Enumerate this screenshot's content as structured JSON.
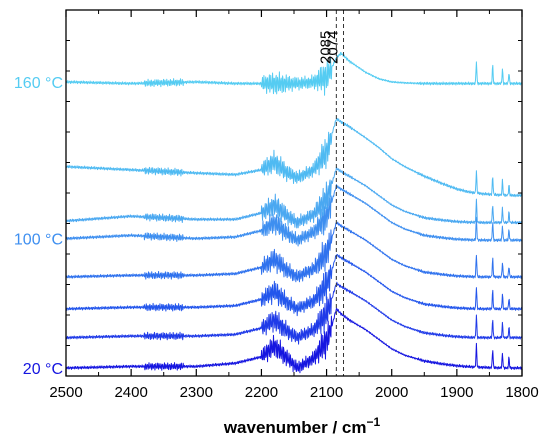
{
  "chart_data": {
    "type": "line",
    "title": "",
    "xlabel": "wavenumber / cm",
    "xlabel_sup": "−1",
    "ylabel": "",
    "xlim": [
      2500,
      1800
    ],
    "x_reversed": true,
    "ylim": [
      -0.25,
      11.2
    ],
    "yticks_shown": false,
    "grid": false,
    "legend": "none",
    "x_tick_labels": [
      "2500",
      "2400",
      "2300",
      "2200",
      "2100",
      "2000",
      "1900",
      "1800"
    ],
    "x_tick_values": [
      2500,
      2400,
      2300,
      2200,
      2100,
      2000,
      1900,
      1800
    ],
    "reference_lines": [
      {
        "x": 2085,
        "label": "2085",
        "style": "dashed"
      },
      {
        "x": 2074,
        "label": "2074",
        "style": "dashed"
      }
    ],
    "temperature_labels": [
      {
        "text": "160 °C",
        "series_index": 7,
        "color": "#55ccf2"
      },
      {
        "text": "100 °C",
        "series_index": 4,
        "color": "#3e8ff0"
      },
      {
        "text": "20 °C",
        "series_index": 0,
        "color": "#1515e0"
      }
    ],
    "series": [
      {
        "color": "#1515e0",
        "x": [
          2500,
          2400,
          2300,
          2240,
          2200,
          2180,
          2160,
          2145,
          2120,
          2100,
          2092,
          2085,
          2078,
          2065,
          2040,
          2020,
          2000,
          1980,
          1950,
          1920,
          1900,
          1880,
          1860,
          1840,
          1820,
          1800
        ],
        "y": [
          0.0,
          0.05,
          0.05,
          0.15,
          0.35,
          0.7,
          0.3,
          0.0,
          0.3,
          0.85,
          1.3,
          1.85,
          1.7,
          1.5,
          1.2,
          0.9,
          0.6,
          0.4,
          0.22,
          0.12,
          0.07,
          0.04,
          0.02,
          0.01,
          0.0,
          0.0
        ]
      },
      {
        "color": "#1f3ae8",
        "x": [
          2500,
          2400,
          2300,
          2240,
          2200,
          2180,
          2160,
          2145,
          2120,
          2100,
          2092,
          2085,
          2078,
          2065,
          2040,
          2020,
          2000,
          1980,
          1950,
          1920,
          1900,
          1880,
          1860,
          1840,
          1820,
          1800
        ],
        "y": [
          0.95,
          1.0,
          1.0,
          1.05,
          1.25,
          1.5,
          1.15,
          0.95,
          1.2,
          1.7,
          2.15,
          2.65,
          2.55,
          2.4,
          2.1,
          1.8,
          1.5,
          1.3,
          1.1,
          1.02,
          0.98,
          0.96,
          0.95,
          0.95,
          0.95,
          0.95
        ]
      },
      {
        "color": "#2356ec",
        "x": [
          2500,
          2400,
          2300,
          2240,
          2200,
          2180,
          2160,
          2145,
          2120,
          2100,
          2092,
          2085,
          2078,
          2065,
          2040,
          2020,
          2000,
          1980,
          1950,
          1920,
          1900,
          1880,
          1860,
          1840,
          1820,
          1800
        ],
        "y": [
          1.85,
          1.9,
          1.9,
          1.95,
          2.15,
          2.4,
          2.05,
          1.85,
          2.1,
          2.6,
          3.05,
          3.55,
          3.45,
          3.3,
          3.0,
          2.7,
          2.4,
          2.2,
          2.0,
          1.92,
          1.88,
          1.86,
          1.85,
          1.85,
          1.85,
          1.85
        ]
      },
      {
        "color": "#2f72ee",
        "x": [
          2500,
          2400,
          2300,
          2240,
          2200,
          2180,
          2160,
          2145,
          2120,
          2100,
          2092,
          2085,
          2078,
          2065,
          2040,
          2020,
          2000,
          1980,
          1950,
          1920,
          1900,
          1880,
          1860,
          1840,
          1820,
          1800
        ],
        "y": [
          2.85,
          2.9,
          2.9,
          2.95,
          3.15,
          3.4,
          3.05,
          2.85,
          3.1,
          3.6,
          4.05,
          4.55,
          4.45,
          4.3,
          4.0,
          3.7,
          3.4,
          3.2,
          3.0,
          2.92,
          2.88,
          2.86,
          2.85,
          2.85,
          2.85,
          2.85
        ]
      },
      {
        "color": "#3e8ff0",
        "x": [
          2500,
          2400,
          2300,
          2240,
          2200,
          2180,
          2160,
          2145,
          2120,
          2100,
          2092,
          2085,
          2078,
          2065,
          2040,
          2020,
          2000,
          1980,
          1950,
          1920,
          1900,
          1880,
          1860,
          1840,
          1820,
          1800
        ],
        "y": [
          4.05,
          4.15,
          4.05,
          4.1,
          4.3,
          4.55,
          4.2,
          4.0,
          4.25,
          4.75,
          5.2,
          5.7,
          5.6,
          5.45,
          5.15,
          4.85,
          4.55,
          4.35,
          4.15,
          4.07,
          4.03,
          4.01,
          4.0,
          4.0,
          4.0,
          4.0
        ]
      },
      {
        "color": "#4aa8f1",
        "x": [
          2500,
          2400,
          2300,
          2240,
          2200,
          2180,
          2160,
          2145,
          2120,
          2100,
          2092,
          2085,
          2078,
          2065,
          2040,
          2020,
          2000,
          1980,
          1950,
          1920,
          1900,
          1880,
          1860,
          1840,
          1820,
          1800
        ],
        "y": [
          4.6,
          4.75,
          4.65,
          4.65,
          4.85,
          5.1,
          4.75,
          4.55,
          4.8,
          5.3,
          5.75,
          6.25,
          6.15,
          6.0,
          5.7,
          5.4,
          5.1,
          4.9,
          4.7,
          4.62,
          4.58,
          4.56,
          4.55,
          4.55,
          4.55,
          4.55
        ]
      },
      {
        "color": "#4fbaf2",
        "x": [
          2500,
          2400,
          2300,
          2240,
          2200,
          2180,
          2160,
          2145,
          2120,
          2100,
          2092,
          2085,
          2078,
          2065,
          2040,
          2020,
          2000,
          1980,
          1950,
          1920,
          1900,
          1880,
          1860,
          1840,
          1820,
          1800
        ],
        "y": [
          6.3,
          6.2,
          6.1,
          6.05,
          6.2,
          6.45,
          6.1,
          5.95,
          6.2,
          6.75,
          7.3,
          7.8,
          7.7,
          7.55,
          7.2,
          6.9,
          6.55,
          6.3,
          6.0,
          5.75,
          5.6,
          5.5,
          5.45,
          5.42,
          5.4,
          5.4
        ]
      },
      {
        "color": "#55ccf2",
        "x": [
          2500,
          2400,
          2300,
          2240,
          2200,
          2180,
          2160,
          2145,
          2120,
          2100,
          2092,
          2085,
          2078,
          2065,
          2040,
          2020,
          2000,
          1980,
          1950,
          1920,
          1900,
          1880,
          1860,
          1840,
          1820,
          1800
        ],
        "y": [
          8.95,
          8.9,
          8.95,
          8.9,
          8.9,
          8.9,
          8.9,
          8.9,
          8.95,
          9.1,
          9.4,
          9.7,
          9.85,
          9.6,
          9.25,
          9.05,
          8.95,
          8.92,
          8.9,
          8.9,
          8.9,
          8.9,
          8.9,
          8.9,
          8.9,
          8.9
        ]
      }
    ]
  }
}
